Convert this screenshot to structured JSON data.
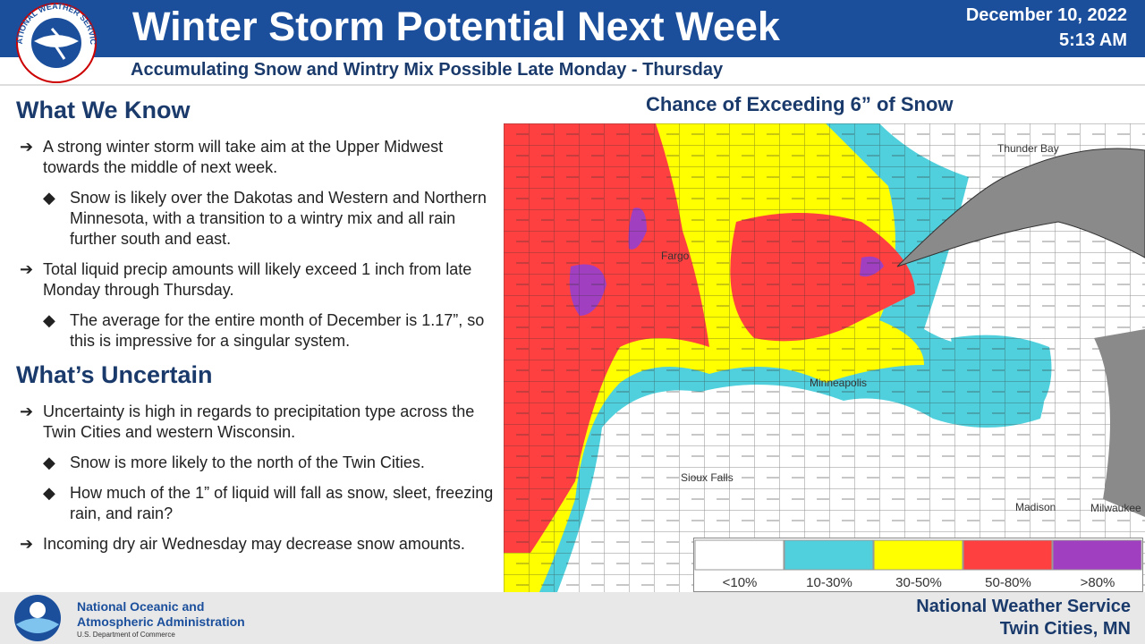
{
  "header": {
    "logo_text": "NATIONAL WEATHER SERVICE",
    "title": "Winter Storm Potential Next Week",
    "subtitle": "Accumulating Snow and Wintry Mix Possible Late Monday - Thursday",
    "date": "December 10, 2022",
    "time": "5:13 AM"
  },
  "sections": [
    {
      "heading": "What We Know",
      "items": [
        {
          "level": 1,
          "text": "A strong winter storm will take aim at the Upper Midwest towards the middle of next week."
        },
        {
          "level": 2,
          "text": "Snow is likely over the Dakotas and Western and Northern Minnesota, with a transition to a wintry mix and all rain further south and east."
        },
        {
          "level": 1,
          "text": "Total liquid precip amounts will likely exceed 1 inch from late Monday through Thursday."
        },
        {
          "level": 2,
          "text": "The average for the entire month of December is 1.17”, so this is impressive for a singular system."
        }
      ]
    },
    {
      "heading": "What’s Uncertain",
      "items": [
        {
          "level": 1,
          "text": "Uncertainty is high in regards to precipitation type across the Twin Cities and western Wisconsin."
        },
        {
          "level": 2,
          "text": "Snow is more likely to the north of the Twin Cities."
        },
        {
          "level": 2,
          "text": "How much of the 1” of liquid will fall as snow, sleet, freezing rain, and rain?"
        },
        {
          "level": 1,
          "text": "Incoming dry air Wednesday may decrease snow amounts."
        }
      ]
    }
  ],
  "map": {
    "title": "Chance of Exceeding 6” of Snow",
    "cities": [
      "Thunder Bay",
      "Fargo",
      "Minneapolis",
      "Sioux Falls",
      "Madison",
      "Milwaukee"
    ],
    "legend": [
      {
        "label": "<10%",
        "color": "#ffffff"
      },
      {
        "label": "10-30%",
        "color": "#4fd0dc"
      },
      {
        "label": "30-50%",
        "color": "#ffff00"
      },
      {
        "label": "50-80%",
        "color": "#ff4040"
      },
      {
        "label": ">80%",
        "color": "#a040c0"
      }
    ]
  },
  "footer": {
    "agency_lines": [
      "National Oceanic and",
      "Atmospheric Administration"
    ],
    "department": "U.S. Department of Commerce",
    "office_lines": [
      "National Weather Service",
      "Twin Cities, MN"
    ]
  }
}
